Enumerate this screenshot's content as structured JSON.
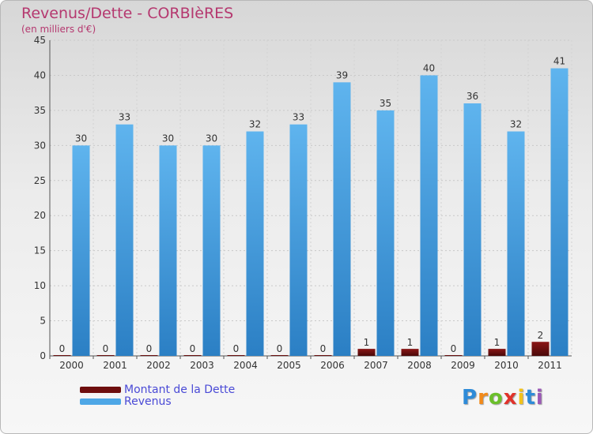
{
  "header": {
    "title": "Revenus/Dette - CORBIèRES",
    "subtitle": "(en milliers d'€)"
  },
  "brand": {
    "logo_letters": [
      "P",
      "r",
      "o",
      "x",
      "i",
      "t",
      "i"
    ],
    "logo_colors": [
      "#2e8bd8",
      "#f28a1a",
      "#6bbf2a",
      "#e0322b",
      "#f2c21a",
      "#2e8bd8",
      "#9b59b6"
    ]
  },
  "colors": {
    "dette": "#6e0e0e",
    "revenus": "#4ea7e6",
    "title": "#b5386f",
    "legend_text": "#4a4ad6"
  },
  "legend": [
    {
      "label": "Montant de la Dette",
      "color": "#6e0e0e"
    },
    {
      "label": "Revenus",
      "color": "#4ea7e6"
    }
  ],
  "chart_data": {
    "type": "bar",
    "title": "Revenus/Dette - CORBIèRES",
    "subtitle": "(en milliers d'€)",
    "categories": [
      "2000",
      "2001",
      "2002",
      "2003",
      "2004",
      "2005",
      "2006",
      "2007",
      "2008",
      "2009",
      "2010",
      "2011"
    ],
    "series": [
      {
        "name": "Montant de la Dette",
        "values": [
          0,
          0,
          0,
          0,
          0,
          0,
          0,
          1,
          1,
          0,
          1,
          2
        ]
      },
      {
        "name": "Revenus",
        "values": [
          30,
          33,
          30,
          30,
          32,
          33,
          39,
          35,
          40,
          36,
          32,
          41
        ]
      }
    ],
    "ylim": [
      0,
      45
    ],
    "yticks": [
      0,
      5,
      10,
      15,
      20,
      25,
      30,
      35,
      40,
      45
    ],
    "grid": true,
    "legend_position": "bottom-left"
  }
}
